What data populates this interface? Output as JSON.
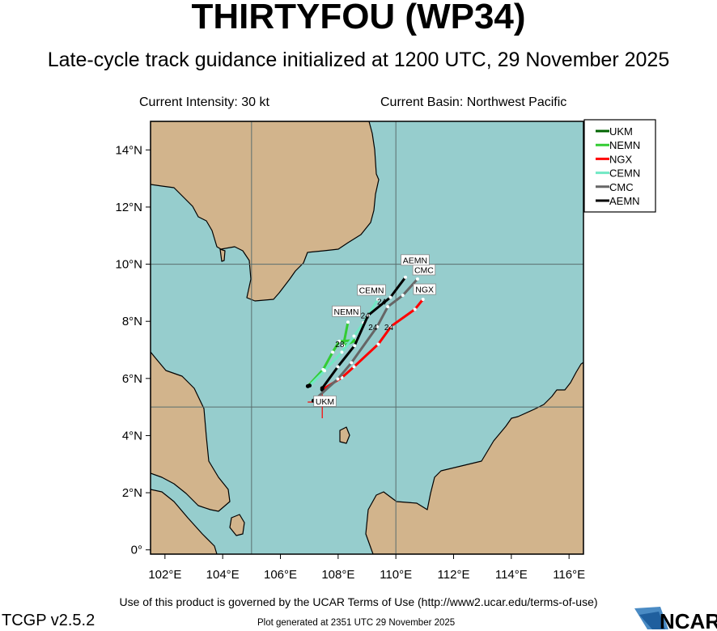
{
  "header": {
    "title": "THIRTYFOU (WP34)",
    "subtitle": "Late-cycle track guidance initialized at 1200 UTC, 29 November 2025",
    "current_intensity": "Current Intensity: 30 kt",
    "current_basin": "Current Basin: Northwest Pacific"
  },
  "footer": {
    "terms": "Use of this product is governed by the UCAR Terms of Use (http://www2.ucar.edu/terms-of-use)",
    "version": "TCGP v2.5.2",
    "generated": "Plot generated at 2351 UTC   29 November 2025",
    "logo": "NCAR"
  },
  "colors": {
    "ocean": "#96cdcd",
    "land": "#d2b48c",
    "grid": "#5a6e6e"
  },
  "chart_data": {
    "type": "map-track",
    "xlim": [
      101.5,
      116.5
    ],
    "ylim": [
      -0.15,
      15
    ],
    "x_ticks": [
      {
        "value": 102,
        "label": "102°E"
      },
      {
        "value": 104,
        "label": "104°E"
      },
      {
        "value": 106,
        "label": "106°E"
      },
      {
        "value": 108,
        "label": "108°E"
      },
      {
        "value": 110,
        "label": "110°E"
      },
      {
        "value": 112,
        "label": "112°E"
      },
      {
        "value": 114,
        "label": "114°E"
      },
      {
        "value": 116,
        "label": "116°E"
      }
    ],
    "y_ticks": [
      {
        "value": 0,
        "label": "0°"
      },
      {
        "value": 2,
        "label": "2°N"
      },
      {
        "value": 4,
        "label": "4°N"
      },
      {
        "value": 6,
        "label": "6°N"
      },
      {
        "value": 8,
        "label": "8°N"
      },
      {
        "value": 10,
        "label": "10°N"
      },
      {
        "value": 12,
        "label": "12°N"
      },
      {
        "value": 14,
        "label": "14°N"
      }
    ],
    "gridlines": {
      "lon": [
        105,
        110
      ],
      "lat": [
        5,
        10
      ]
    },
    "legend_placement": "right-top",
    "current_position": {
      "lon": 107.45,
      "lat": 5.4
    },
    "series": [
      {
        "name": "UKM",
        "color": "#006400",
        "lon": [
          107.15
        ],
        "lat": [
          5.22
        ],
        "hour_labels": []
      },
      {
        "name": "NEMN",
        "color": "#33cc33",
        "lon": [
          106.95,
          107.48,
          107.81,
          108.04,
          108.65,
          108.18,
          108.34
        ],
        "lat": [
          5.73,
          6.31,
          6.92,
          7.3,
          7.34,
          7.15,
          7.97
        ],
        "hour_labels": [
          {
            "label": "28",
            "lon": 107.9,
            "lat": 7.1
          }
        ]
      },
      {
        "name": "NGX",
        "color": "#ff0000",
        "lon": [
          107.45,
          108.13,
          108.55,
          109.39,
          109.84,
          110.66,
          110.94
        ],
        "lat": [
          5.61,
          6.03,
          6.41,
          7.2,
          7.83,
          8.42,
          8.77
        ],
        "hour_labels": [
          {
            "label": "24",
            "lon": 109.6,
            "lat": 7.7
          }
        ]
      },
      {
        "name": "CEMN",
        "color": "#70e8c4",
        "lon": [
          107.01,
          107.53,
          108.13,
          108.55,
          108.88,
          109.38
        ],
        "lat": [
          5.75,
          6.27,
          6.92,
          7.48,
          7.95,
          8.77
        ],
        "hour_labels": [
          {
            "label": "24",
            "lon": 109.35,
            "lat": 8.58
          }
        ]
      },
      {
        "name": "CMC",
        "color": "#666666",
        "lon": [
          107.15,
          107.99,
          108.46,
          109.35,
          109.72,
          110.24,
          110.75
        ],
        "lat": [
          5.22,
          5.98,
          6.55,
          7.81,
          8.51,
          8.91,
          9.48
        ],
        "hour_labels": [
          {
            "label": "24",
            "lon": 109.05,
            "lat": 7.7
          }
        ]
      },
      {
        "name": "AEMN",
        "color": "#000000",
        "lon": [
          107.45,
          107.99,
          108.57,
          109.04,
          109.81,
          110.33
        ],
        "lat": [
          5.66,
          6.41,
          7.15,
          8.21,
          8.84,
          9.54
        ],
        "hour_labels": [
          {
            "label": "24",
            "lon": 108.78,
            "lat": 8.1
          }
        ]
      }
    ]
  }
}
